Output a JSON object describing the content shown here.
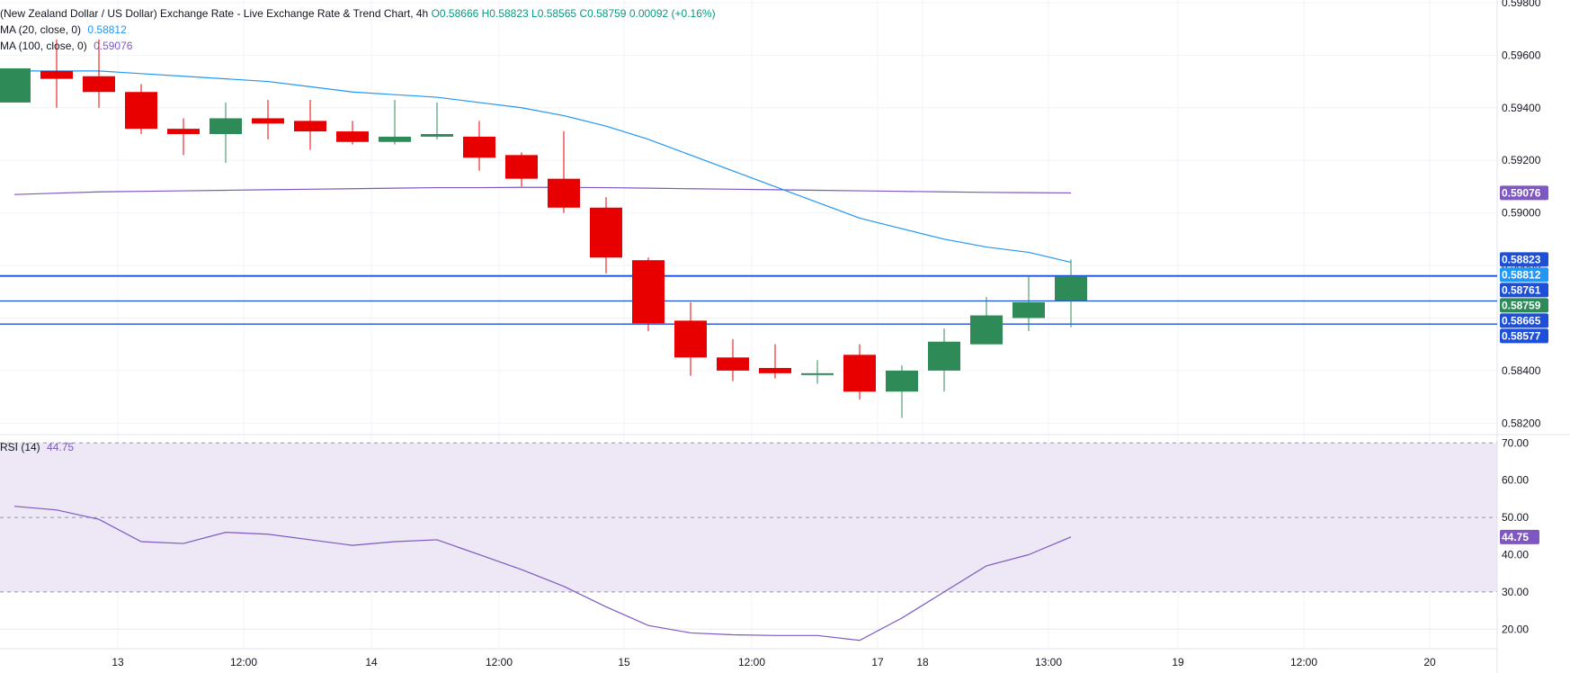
{
  "header": {
    "title": "(New Zealand Dollar / US Dollar) Exchange Rate - Live Exchange Rate & Trend Chart, 4h",
    "ohlc": {
      "o": "O0.58666",
      "h": "H0.58823",
      "l": "L0.58565",
      "c": "C0.58759",
      "change": "0.00092 (+0.16%)"
    }
  },
  "indicators": {
    "ma20": {
      "label": "MA (20, close, 0)",
      "value": "0.58812",
      "color": "#2196f3"
    },
    "ma100": {
      "label": "MA (100, close, 0)",
      "value": "0.59076",
      "color": "#7e57c2"
    },
    "rsi": {
      "label": "RSI (14)",
      "value": "44.75",
      "color": "#7e57c2"
    }
  },
  "colors": {
    "up": "#2e8b57",
    "down": "#e80000",
    "hline": "#1e4fd8",
    "rsi_band": "#ede7f6"
  },
  "chart_data": [
    {
      "type": "candlestick",
      "title": "(New Zealand Dollar / US Dollar) Exchange Rate - Live Exchange Rate & Trend Chart, 4h",
      "x_ticks": [
        "13",
        "12:00",
        "14",
        "12:00",
        "15",
        "12:00",
        "17",
        "18",
        "13:00",
        "19",
        "12:00",
        "20"
      ],
      "y_ticks": [
        "0.58200",
        "0.58400",
        "0.58600",
        "0.58800",
        "0.59000",
        "0.59200",
        "0.59400",
        "0.59600",
        "0.59800"
      ],
      "ylim": [
        0.5816,
        0.5981
      ],
      "candles": [
        {
          "o": 0.5942,
          "h": 0.5955,
          "l": 0.5942,
          "c": 0.5955
        },
        {
          "o": 0.5954,
          "h": 0.5966,
          "l": 0.594,
          "c": 0.5951
        },
        {
          "o": 0.5952,
          "h": 0.5966,
          "l": 0.594,
          "c": 0.5946
        },
        {
          "o": 0.5946,
          "h": 0.5949,
          "l": 0.593,
          "c": 0.5932
        },
        {
          "o": 0.5932,
          "h": 0.5936,
          "l": 0.5922,
          "c": 0.593
        },
        {
          "o": 0.593,
          "h": 0.5942,
          "l": 0.5919,
          "c": 0.5936
        },
        {
          "o": 0.5936,
          "h": 0.5943,
          "l": 0.5928,
          "c": 0.5934
        },
        {
          "o": 0.5935,
          "h": 0.5943,
          "l": 0.5924,
          "c": 0.5931
        },
        {
          "o": 0.5931,
          "h": 0.5935,
          "l": 0.5926,
          "c": 0.5927
        },
        {
          "o": 0.5927,
          "h": 0.5943,
          "l": 0.5926,
          "c": 0.5929
        },
        {
          "o": 0.5929,
          "h": 0.5942,
          "l": 0.5928,
          "c": 0.593
        },
        {
          "o": 0.5929,
          "h": 0.5935,
          "l": 0.5916,
          "c": 0.5921
        },
        {
          "o": 0.5922,
          "h": 0.5923,
          "l": 0.591,
          "c": 0.5913
        },
        {
          "o": 0.5913,
          "h": 0.5931,
          "l": 0.59,
          "c": 0.5902
        },
        {
          "o": 0.5902,
          "h": 0.5906,
          "l": 0.5877,
          "c": 0.5883
        },
        {
          "o": 0.5882,
          "h": 0.5883,
          "l": 0.5855,
          "c": 0.5858
        },
        {
          "o": 0.5859,
          "h": 0.5866,
          "l": 0.5838,
          "c": 0.5845
        },
        {
          "o": 0.5845,
          "h": 0.5852,
          "l": 0.5836,
          "c": 0.584
        },
        {
          "o": 0.5841,
          "h": 0.585,
          "l": 0.5837,
          "c": 0.5839
        },
        {
          "o": 0.5839,
          "h": 0.5844,
          "l": 0.5835,
          "c": 0.5839
        },
        {
          "o": 0.5846,
          "h": 0.585,
          "l": 0.5829,
          "c": 0.5832
        },
        {
          "o": 0.5832,
          "h": 0.5842,
          "l": 0.5822,
          "c": 0.584
        },
        {
          "o": 0.584,
          "h": 0.5856,
          "l": 0.5832,
          "c": 0.5851
        },
        {
          "o": 0.585,
          "h": 0.5868,
          "l": 0.585,
          "c": 0.5861
        },
        {
          "o": 0.586,
          "h": 0.5876,
          "l": 0.5855,
          "c": 0.5866
        },
        {
          "o": 0.58666,
          "h": 0.58823,
          "l": 0.58565,
          "c": 0.58759
        }
      ],
      "ma20": [
        0.5954,
        0.5954,
        0.5954,
        0.5953,
        0.5952,
        0.5951,
        0.595,
        0.5948,
        0.5946,
        0.5945,
        0.5944,
        0.5942,
        0.594,
        0.5937,
        0.5933,
        0.5928,
        0.5922,
        0.5916,
        0.591,
        0.5904,
        0.5898,
        0.5894,
        0.589,
        0.5887,
        0.5885,
        0.58812
      ],
      "ma100": [
        0.5907,
        0.59075,
        0.5908,
        0.59082,
        0.59084,
        0.59086,
        0.59088,
        0.5909,
        0.59092,
        0.59094,
        0.59096,
        0.59096,
        0.59097,
        0.59097,
        0.59096,
        0.59094,
        0.59092,
        0.5909,
        0.59088,
        0.59086,
        0.59084,
        0.59082,
        0.5908,
        0.59078,
        0.59077,
        0.59076
      ],
      "horizontal_lines": [
        0.58761,
        0.58759,
        0.58665,
        0.58577
      ],
      "price_labels": [
        {
          "text": "0.59076",
          "value": 0.59076,
          "color": "#7e57c2"
        },
        {
          "text": "0.58823",
          "value": 0.58823,
          "color": "#1e4fd8"
        },
        {
          "text": "0.58812",
          "value": 0.58812,
          "color": "#2196f3"
        },
        {
          "text": "0.58761",
          "value": 0.58761,
          "color": "#1e4fd8"
        },
        {
          "text": "0.58759",
          "value": 0.58759,
          "color": "#2e8b57"
        },
        {
          "text": "0.58665",
          "value": 0.58665,
          "color": "#1e4fd8"
        },
        {
          "text": "0.58577",
          "value": 0.58577,
          "color": "#1e4fd8"
        }
      ]
    },
    {
      "type": "line",
      "title": "RSI (14)",
      "y_ticks": [
        "20.00",
        "30.00",
        "40.00",
        "50.00",
        "60.00",
        "70.00"
      ],
      "ylim": [
        15,
        72
      ],
      "band": [
        30,
        70
      ],
      "midline": 50,
      "values": [
        53,
        52,
        49.5,
        43.5,
        43,
        46,
        45.5,
        44,
        42.5,
        43.5,
        44,
        40,
        36,
        31.5,
        26,
        21,
        19,
        18.5,
        18.3,
        18.3,
        17,
        23,
        30,
        37,
        40,
        44.75
      ],
      "last_label": "44.75"
    }
  ]
}
